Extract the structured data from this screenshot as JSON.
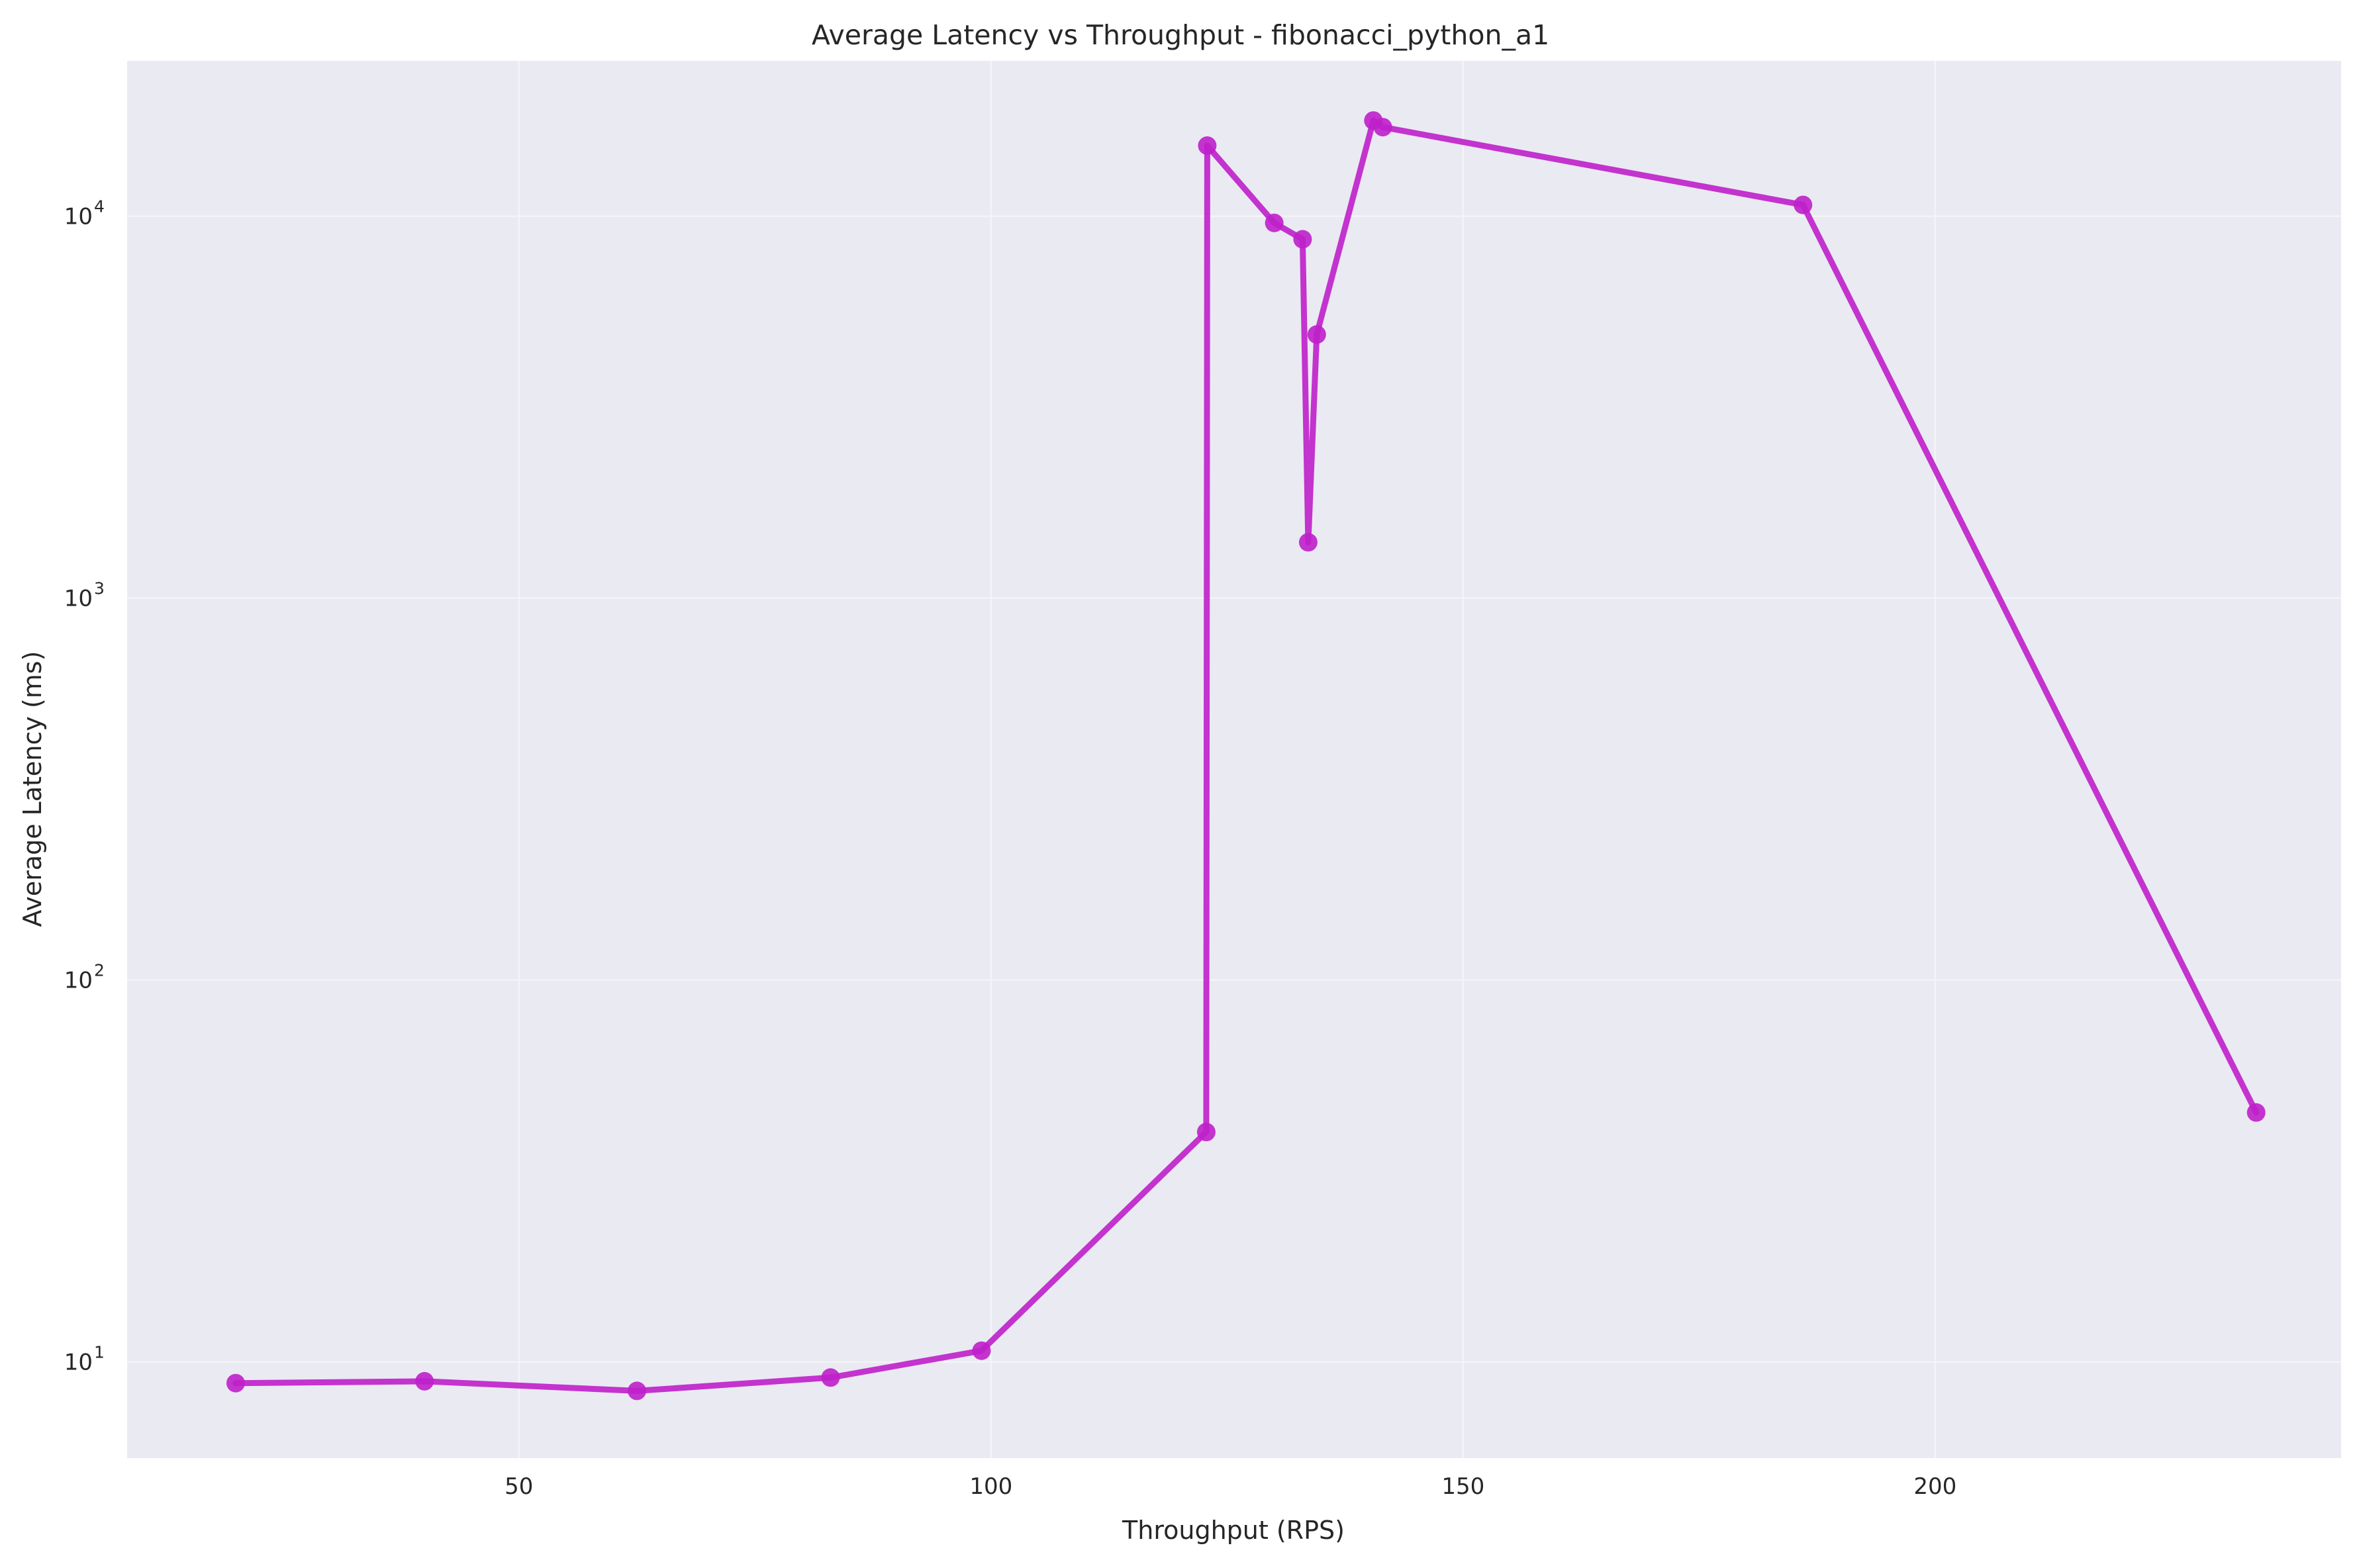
{
  "chart_data": {
    "type": "line",
    "title": "Average Latency vs Throughput - fibonacci_python_a1",
    "xlabel": "Throughput (RPS)",
    "ylabel": "Average Latency (ms)",
    "xlim": [
      8.5,
      243
    ],
    "ylim": [
      5.6,
      25500
    ],
    "yscale": "log",
    "grid": true,
    "legend": "none",
    "x_ticks": [
      50,
      100,
      150,
      200
    ],
    "y_ticks": [
      {
        "value": 10,
        "base": "10",
        "exp": "1"
      },
      {
        "value": 100,
        "base": "10",
        "exp": "2"
      },
      {
        "value": 1000,
        "base": "10",
        "exp": "3"
      },
      {
        "value": 10000,
        "base": "10",
        "exp": "4"
      }
    ],
    "colors": {
      "background": "#eaeaf2",
      "grid": "#f5f5f8",
      "line": "#bf1fca",
      "marker": "#bf1fca"
    },
    "series": [
      {
        "x": [
          20,
          40,
          62.5,
          83,
          99,
          122.8,
          122.9,
          130,
          133,
          133.6,
          134.5,
          140.5,
          141.5,
          186,
          234
        ],
        "y": [
          8.8,
          8.9,
          8.4,
          9.1,
          10.7,
          40,
          15300,
          9600,
          8700,
          1400,
          4900,
          17800,
          17100,
          10700,
          45
        ]
      }
    ]
  }
}
